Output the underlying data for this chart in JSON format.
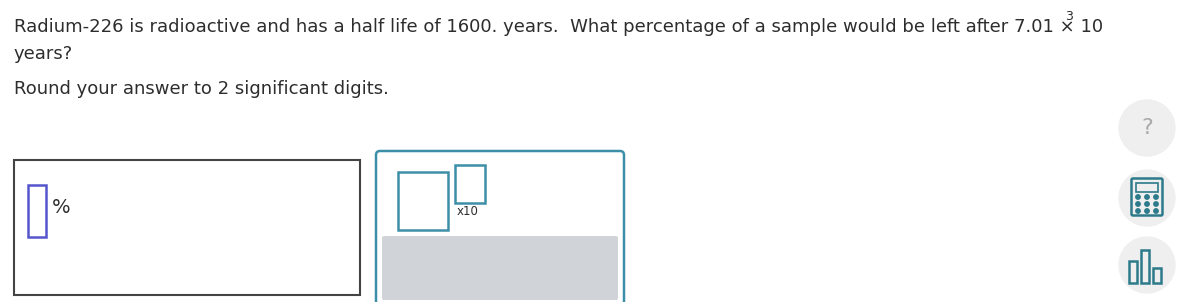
{
  "background_color": "#ffffff",
  "text_color": "#2d2d2d",
  "teal_color": "#3d8fa8",
  "blue_color": "#5555cc",
  "light_gray": "#f0f0f0",
  "mid_gray": "#d0d4d8",
  "icon_circle_color": "#efefef",
  "icon_teal": "#2d7a8a",
  "question_line1": "Radium-226 is radioactive and has a half life of 1600. years.  What percentage of a sample would be left after 7.01 × 10",
  "superscript_3": "3",
  "question_line2": "years?",
  "round_text": "Round your answer to 2 significant digits.",
  "percent_sign": "%",
  "x10_label": "x10",
  "fig_width": 12.0,
  "fig_height": 3.02,
  "dpi": 100
}
